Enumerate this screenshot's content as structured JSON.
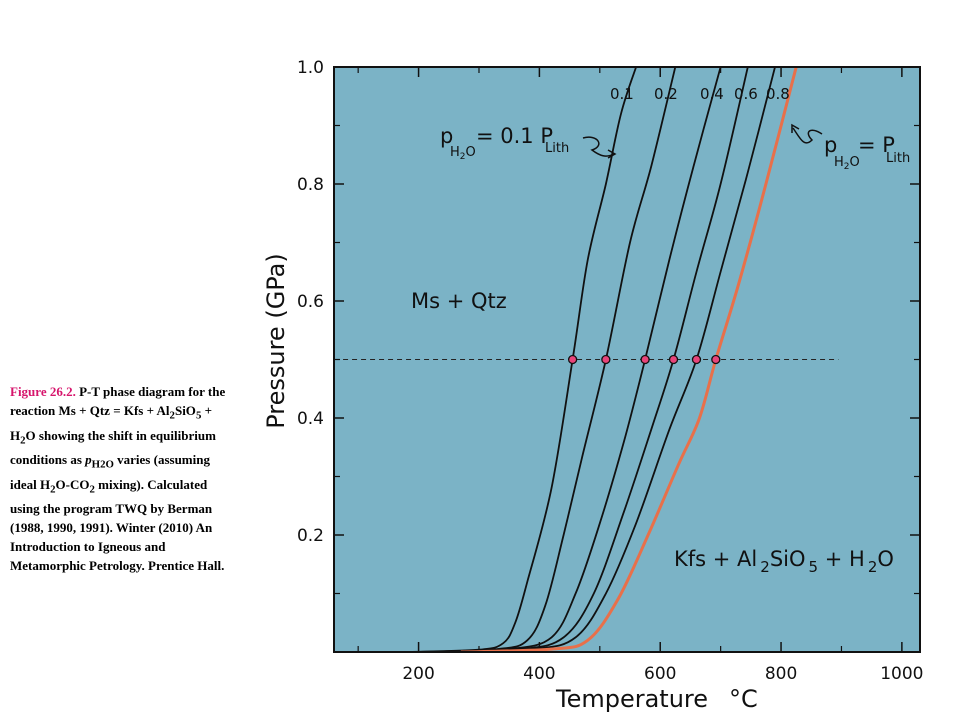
{
  "caption": {
    "label": "Figure 26.2.",
    "text_1": " P-T phase diagram for the reaction Ms + Qtz = Kfs + Al",
    "sub_1": "2",
    "text_2": "SiO",
    "sub_2": "5",
    "text_3": " + H",
    "sub_3": "2",
    "text_4": "O showing the shift in equilibrium conditions as ",
    "pvar": "p",
    "pvar_sub": "H2O",
    "text_5": " varies (assuming ideal H",
    "sub_5": "2",
    "text_6": "O-CO",
    "sub_6": "2",
    "text_7": " mixing). Calculated using the program TWQ by Berman (1988, 1990, 1991). Winter (2010) An Introduction to Igneous and Metamorphic Petrology. Prentice Hall."
  },
  "colors": {
    "plot_bg": "#7bb3c6",
    "line": "#111111",
    "lith_line": "#e8704a",
    "marker_fill": "#e8447a"
  },
  "chart_data": {
    "type": "line",
    "xlabel": "Temperature",
    "xlabel_unit": "°C",
    "ylabel": "Pressure (GPa)",
    "xlim": [
      60,
      1030
    ],
    "ylim": [
      0,
      1.0
    ],
    "x_ticks": [
      200,
      400,
      600,
      800,
      1000
    ],
    "y_ticks": [
      0.2,
      0.4,
      0.6,
      0.8,
      1.0
    ],
    "y_tick_labels": [
      "0.2",
      "0.4",
      "0.6",
      "0.8",
      "1.0"
    ],
    "reference_line": {
      "style": "dashed",
      "y": 0.5,
      "x_range": [
        75,
        895
      ]
    },
    "series": [
      {
        "name": "0.1",
        "color_key": "line",
        "points": [
          [
            180,
            0.0
          ],
          [
            300,
            0.004
          ],
          [
            340,
            0.015
          ],
          [
            360,
            0.05
          ],
          [
            380,
            0.12
          ],
          [
            420,
            0.28
          ],
          [
            455,
            0.5
          ],
          [
            480,
            0.67
          ],
          [
            510,
            0.8
          ],
          [
            535,
            0.92
          ],
          [
            560,
            1.0
          ]
        ]
      },
      {
        "name": "0.2",
        "color_key": "line",
        "points": [
          [
            200,
            0.0
          ],
          [
            330,
            0.005
          ],
          [
            380,
            0.02
          ],
          [
            410,
            0.08
          ],
          [
            440,
            0.2
          ],
          [
            470,
            0.33
          ],
          [
            510,
            0.5
          ],
          [
            550,
            0.7
          ],
          [
            585,
            0.83
          ],
          [
            625,
            1.0
          ]
        ]
      },
      {
        "name": "0.4",
        "color_key": "line",
        "points": [
          [
            220,
            0.0
          ],
          [
            350,
            0.005
          ],
          [
            420,
            0.025
          ],
          [
            460,
            0.1
          ],
          [
            500,
            0.22
          ],
          [
            540,
            0.36
          ],
          [
            575,
            0.5
          ],
          [
            615,
            0.67
          ],
          [
            655,
            0.83
          ],
          [
            700,
            1.0
          ]
        ]
      },
      {
        "name": "0.6",
        "color_key": "line",
        "points": [
          [
            230,
            0.0
          ],
          [
            370,
            0.005
          ],
          [
            440,
            0.025
          ],
          [
            490,
            0.1
          ],
          [
            540,
            0.24
          ],
          [
            585,
            0.38
          ],
          [
            622,
            0.5
          ],
          [
            660,
            0.65
          ],
          [
            700,
            0.8
          ],
          [
            745,
            1.0
          ]
        ]
      },
      {
        "name": "0.8",
        "color_key": "line",
        "points": [
          [
            240,
            0.0
          ],
          [
            390,
            0.005
          ],
          [
            460,
            0.025
          ],
          [
            510,
            0.1
          ],
          [
            560,
            0.22
          ],
          [
            615,
            0.38
          ],
          [
            660,
            0.5
          ],
          [
            700,
            0.65
          ],
          [
            745,
            0.82
          ],
          [
            790,
            1.0
          ]
        ]
      },
      {
        "name": "Lith",
        "color_key": "lith_line",
        "points": [
          [
            270,
            0.0
          ],
          [
            420,
            0.005
          ],
          [
            480,
            0.02
          ],
          [
            530,
            0.09
          ],
          [
            580,
            0.2
          ],
          [
            630,
            0.32
          ],
          [
            665,
            0.4
          ],
          [
            692,
            0.5
          ],
          [
            730,
            0.63
          ],
          [
            775,
            0.8
          ],
          [
            825,
            1.0
          ]
        ]
      }
    ],
    "markers_at_dashed_line": [
      {
        "x": 455,
        "y": 0.5
      },
      {
        "x": 510,
        "y": 0.5
      },
      {
        "x": 575,
        "y": 0.5
      },
      {
        "x": 622,
        "y": 0.5
      },
      {
        "x": 660,
        "y": 0.5
      },
      {
        "x": 692,
        "y": 0.5
      }
    ],
    "series_top_labels": [
      "0.1",
      "0.2",
      "0.4",
      "0.6",
      "0.8"
    ],
    "field_labels": {
      "low_t": "Ms + Qtz",
      "high_t_1": "Kfs + Al",
      "high_t_sub1": "2",
      "high_t_2": "SiO",
      "high_t_sub2": "5",
      "high_t_3": " + H",
      "high_t_sub3": "2",
      "high_t_4": "O"
    },
    "annotations": {
      "left": {
        "p": "p",
        "sub": "H",
        "sub2": "2",
        "sub3": "O",
        "rest": " = 0.1 P",
        "rest_sub": "Lith"
      },
      "right": {
        "p": "p",
        "sub": "H",
        "sub2": "2",
        "sub3": "O",
        "rest": "= P",
        "rest_sub": "Lith"
      }
    }
  }
}
